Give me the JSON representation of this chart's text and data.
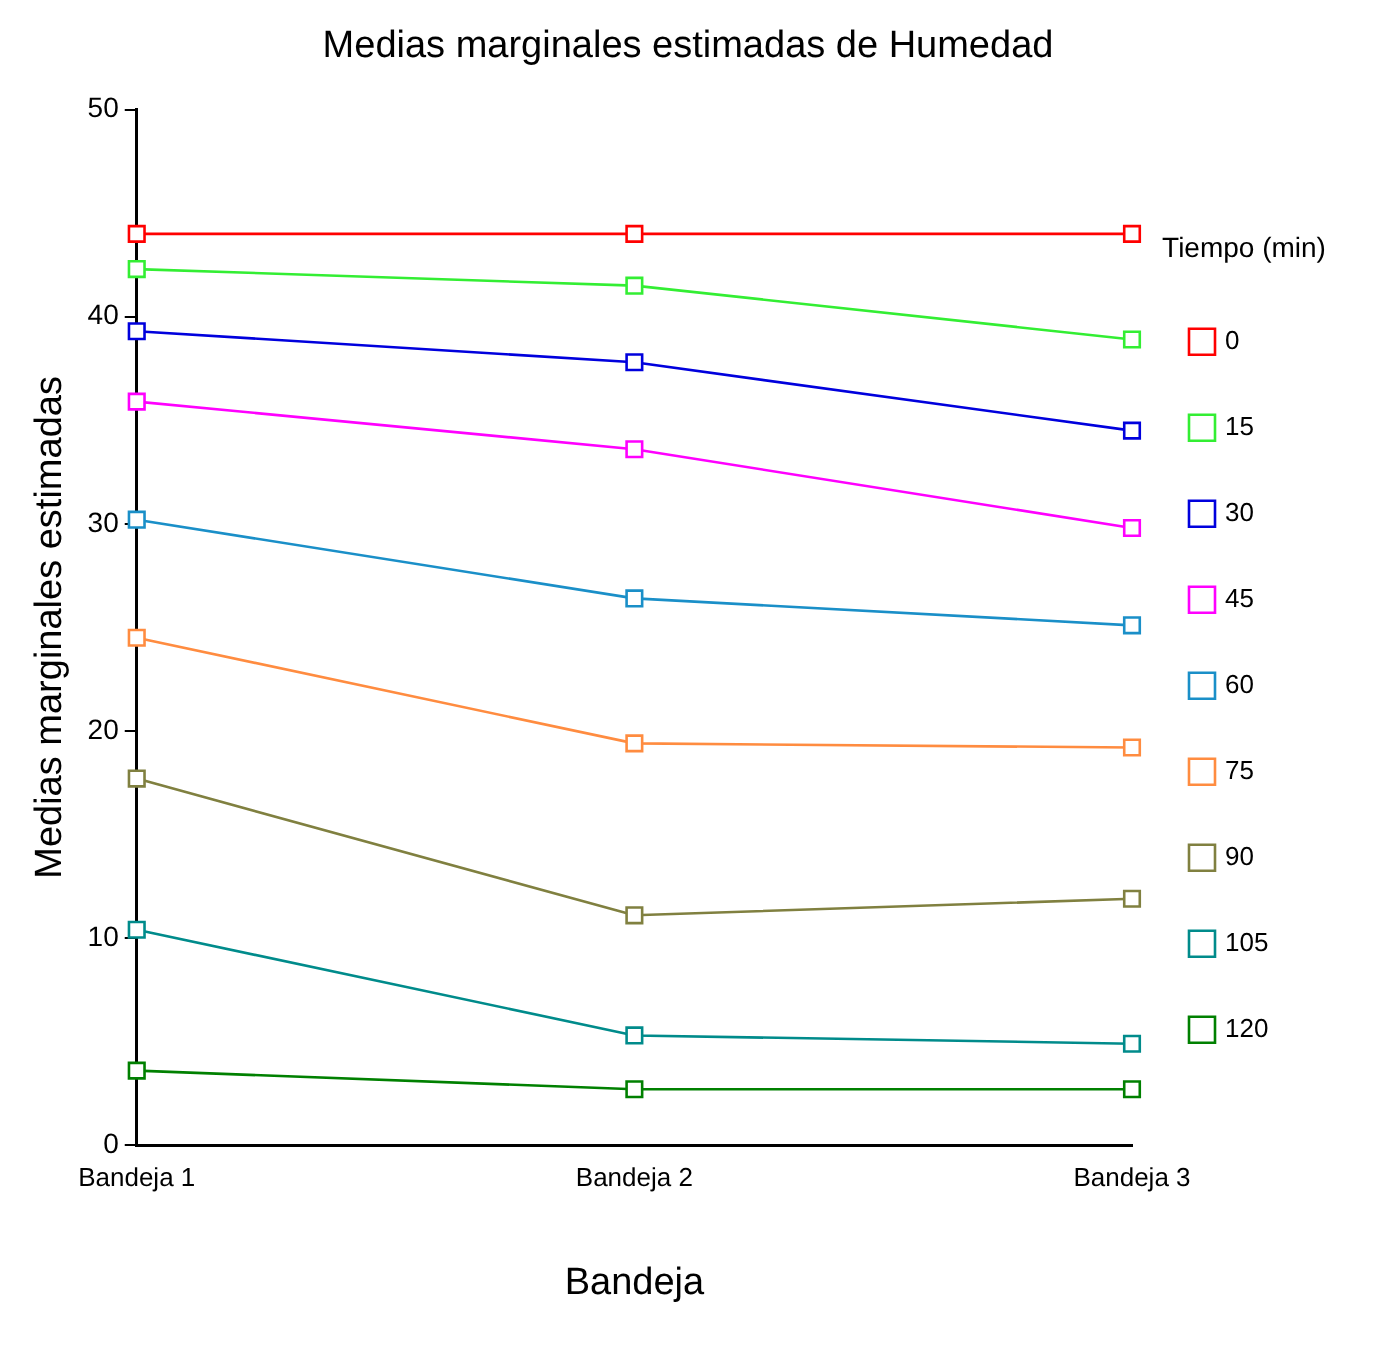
{
  "chart_data": {
    "type": "line",
    "title": "Medias marginales estimadas de Humedad",
    "xlabel": "Bandeja",
    "ylabel": "Medias marginales estimadas",
    "legend_title": "Tiempo (min)",
    "categories": [
      "Bandeja 1",
      "Bandeja 2",
      "Bandeja 3"
    ],
    "ylim": [
      0,
      50
    ],
    "yticks": [
      0,
      10,
      20,
      30,
      40,
      50
    ],
    "grid": false,
    "legend": "right",
    "marker": "square",
    "line_style": "solid",
    "series": [
      {
        "name": "0",
        "color": "#ff0000",
        "values": [
          44.0,
          44.0,
          44.0
        ]
      },
      {
        "name": "15",
        "color": "#33ee33",
        "values": [
          42.3,
          41.5,
          38.9
        ]
      },
      {
        "name": "30",
        "color": "#0000dd",
        "values": [
          39.3,
          37.8,
          34.5
        ]
      },
      {
        "name": "45",
        "color": "#ff00ff",
        "values": [
          35.9,
          33.6,
          29.8
        ]
      },
      {
        "name": "60",
        "color": "#1a8fc8",
        "values": [
          30.2,
          26.4,
          25.1
        ]
      },
      {
        "name": "75",
        "color": "#ff8c40",
        "values": [
          24.5,
          19.4,
          19.2
        ]
      },
      {
        "name": "90",
        "color": "#808040",
        "values": [
          17.7,
          11.1,
          11.9
        ]
      },
      {
        "name": "105",
        "color": "#008b8b",
        "values": [
          10.4,
          5.3,
          4.9
        ]
      },
      {
        "name": "120",
        "color": "#008000",
        "values": [
          3.6,
          2.7,
          2.7
        ]
      }
    ]
  }
}
